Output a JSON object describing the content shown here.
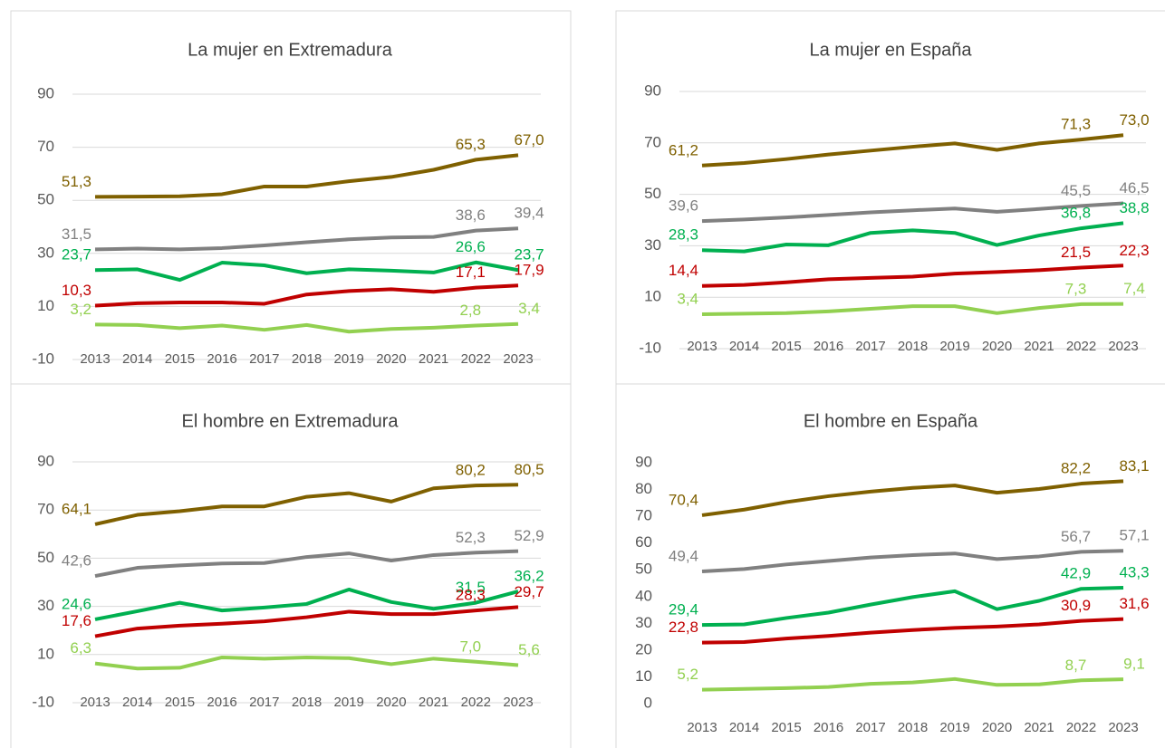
{
  "chart_data": [
    {
      "type": "line",
      "title": "La mujer en Extremadura",
      "categories": [
        "2013",
        "2014",
        "2015",
        "2016",
        "2017",
        "2018",
        "2019",
        "2020",
        "2021",
        "2022",
        "2023"
      ],
      "ylim": [
        -10,
        90
      ],
      "yticks": [
        -10,
        10,
        30,
        50,
        70,
        90
      ],
      "grid": true,
      "series": [
        {
          "color": "#7f6000",
          "values": [
            51.3,
            51.4,
            51.5,
            52.3,
            55.2,
            55.2,
            57.2,
            58.8,
            61.5,
            65.3,
            67.0
          ],
          "value_labels": [
            "51,3",
            null,
            null,
            null,
            null,
            null,
            null,
            null,
            null,
            "65,3",
            "67,0"
          ]
        },
        {
          "color": "#808080",
          "values": [
            31.5,
            31.8,
            31.5,
            32.0,
            33.0,
            34.2,
            35.3,
            36.0,
            36.2,
            38.6,
            39.4
          ],
          "value_labels": [
            "31,5",
            null,
            null,
            null,
            null,
            null,
            null,
            null,
            null,
            "38,6",
            "39,4"
          ]
        },
        {
          "color": "#00b050",
          "values": [
            23.7,
            24.0,
            20.0,
            26.5,
            25.5,
            22.5,
            24.0,
            23.5,
            22.8,
            26.6,
            23.7
          ],
          "value_labels": [
            "23,7",
            null,
            null,
            null,
            null,
            null,
            null,
            null,
            null,
            "26,6",
            "23,7"
          ]
        },
        {
          "color": "#c00000",
          "values": [
            10.3,
            11.2,
            11.5,
            11.5,
            11.0,
            14.5,
            15.8,
            16.5,
            15.5,
            17.1,
            17.9
          ],
          "value_labels": [
            "10,3",
            null,
            null,
            null,
            null,
            null,
            null,
            null,
            null,
            "17,1",
            "17,9"
          ]
        },
        {
          "color": "#92d050",
          "values": [
            3.2,
            3.0,
            1.8,
            2.8,
            1.2,
            3.0,
            0.5,
            1.5,
            2.0,
            2.8,
            3.4
          ],
          "value_labels": [
            "3,2",
            null,
            null,
            null,
            null,
            null,
            null,
            null,
            null,
            "2,8",
            "3,4"
          ]
        }
      ]
    },
    {
      "type": "line",
      "title": "La mujer en España",
      "categories": [
        "2013",
        "2014",
        "2015",
        "2016",
        "2017",
        "2018",
        "2019",
        "2020",
        "2021",
        "2022",
        "2023"
      ],
      "ylim": [
        -10,
        90
      ],
      "yticks": [
        -10,
        10,
        30,
        50,
        70,
        90
      ],
      "grid": true,
      "series": [
        {
          "color": "#7f6000",
          "values": [
            61.2,
            62.2,
            63.7,
            65.5,
            67.0,
            68.5,
            69.8,
            67.3,
            69.8,
            71.3,
            73.0
          ],
          "value_labels": [
            "61,2",
            null,
            null,
            null,
            null,
            null,
            null,
            null,
            null,
            "71,3",
            "73,0"
          ]
        },
        {
          "color": "#808080",
          "values": [
            39.6,
            40.2,
            41.0,
            42.0,
            43.0,
            43.8,
            44.5,
            43.2,
            44.3,
            45.5,
            46.5
          ],
          "value_labels": [
            "39,6",
            null,
            null,
            null,
            null,
            null,
            null,
            null,
            null,
            "45,5",
            "46,5"
          ]
        },
        {
          "color": "#00b050",
          "values": [
            28.3,
            27.8,
            30.5,
            30.2,
            35.0,
            36.0,
            35.0,
            30.3,
            34.0,
            36.8,
            38.8
          ],
          "value_labels": [
            "28,3",
            null,
            null,
            null,
            null,
            null,
            null,
            null,
            null,
            "36,8",
            "38,8"
          ]
        },
        {
          "color": "#c00000",
          "values": [
            14.4,
            14.8,
            15.8,
            17.0,
            17.5,
            18.0,
            19.2,
            19.8,
            20.5,
            21.5,
            22.3
          ],
          "value_labels": [
            "14,4",
            null,
            null,
            null,
            null,
            null,
            null,
            null,
            null,
            "21,5",
            "22,3"
          ]
        },
        {
          "color": "#92d050",
          "values": [
            3.4,
            3.6,
            3.8,
            4.5,
            5.5,
            6.5,
            6.5,
            3.8,
            5.8,
            7.3,
            7.4
          ],
          "value_labels": [
            "3,4",
            null,
            null,
            null,
            null,
            null,
            null,
            null,
            null,
            "7,3",
            "7,4"
          ]
        }
      ]
    },
    {
      "type": "line",
      "title": "El hombre en Extremadura",
      "categories": [
        "2013",
        "2014",
        "2015",
        "2016",
        "2017",
        "2018",
        "2019",
        "2020",
        "2021",
        "2022",
        "2023"
      ],
      "ylim": [
        -10,
        90
      ],
      "yticks": [
        -10,
        10,
        30,
        50,
        70,
        90
      ],
      "grid": true,
      "series": [
        {
          "color": "#7f6000",
          "values": [
            64.1,
            68.0,
            69.5,
            71.5,
            71.5,
            75.5,
            77.0,
            73.5,
            79.0,
            80.2,
            80.5
          ],
          "value_labels": [
            "64,1",
            null,
            null,
            null,
            null,
            null,
            null,
            null,
            null,
            "80,2",
            "80,5"
          ]
        },
        {
          "color": "#808080",
          "values": [
            42.6,
            46.0,
            47.0,
            47.8,
            48.0,
            50.5,
            52.0,
            49.0,
            51.3,
            52.3,
            52.9
          ],
          "value_labels": [
            "42,6",
            null,
            null,
            null,
            null,
            null,
            null,
            null,
            null,
            "52,3",
            "52,9"
          ]
        },
        {
          "color": "#00b050",
          "values": [
            24.6,
            28.0,
            31.5,
            28.3,
            29.5,
            31.0,
            37.0,
            31.8,
            29.0,
            31.5,
            36.2
          ],
          "value_labels": [
            "24,6",
            null,
            null,
            null,
            null,
            null,
            null,
            null,
            null,
            "31,5",
            "36,2"
          ]
        },
        {
          "color": "#c00000",
          "values": [
            17.6,
            20.8,
            22.0,
            22.8,
            23.8,
            25.5,
            27.8,
            26.8,
            26.8,
            28.3,
            29.7
          ],
          "value_labels": [
            "17,6",
            null,
            null,
            null,
            null,
            null,
            null,
            null,
            null,
            "28,3",
            "29,7"
          ]
        },
        {
          "color": "#92d050",
          "values": [
            6.3,
            4.2,
            4.5,
            8.8,
            8.3,
            8.8,
            8.5,
            6.0,
            8.3,
            7.0,
            5.6
          ],
          "value_labels": [
            "6,3",
            null,
            null,
            null,
            null,
            null,
            null,
            null,
            null,
            "7,0",
            "5,6"
          ]
        }
      ]
    },
    {
      "type": "line",
      "title": "El hombre en España",
      "categories": [
        "2013",
        "2014",
        "2015",
        "2016",
        "2017",
        "2018",
        "2019",
        "2020",
        "2021",
        "2022",
        "2023"
      ],
      "ylim": [
        0,
        90
      ],
      "yticks": [
        0,
        10,
        20,
        30,
        40,
        50,
        60,
        70,
        80,
        90
      ],
      "grid": false,
      "series": [
        {
          "color": "#7f6000",
          "values": [
            70.4,
            72.5,
            75.3,
            77.5,
            79.2,
            80.6,
            81.5,
            78.8,
            80.2,
            82.2,
            83.1
          ],
          "value_labels": [
            "70,4",
            null,
            null,
            null,
            null,
            null,
            null,
            null,
            null,
            "82,2",
            "83,1"
          ]
        },
        {
          "color": "#808080",
          "values": [
            49.4,
            50.3,
            52.0,
            53.3,
            54.6,
            55.5,
            56.1,
            54.0,
            55.0,
            56.7,
            57.1
          ],
          "value_labels": [
            "49,4",
            null,
            null,
            null,
            null,
            null,
            null,
            null,
            null,
            "56,7",
            "57,1"
          ]
        },
        {
          "color": "#00b050",
          "values": [
            29.4,
            29.6,
            32.0,
            34.0,
            37.0,
            39.8,
            42.0,
            35.3,
            38.4,
            42.9,
            43.3
          ],
          "value_labels": [
            "29,4",
            null,
            null,
            null,
            null,
            null,
            null,
            null,
            null,
            "42,9",
            "43,3"
          ]
        },
        {
          "color": "#c00000",
          "values": [
            22.8,
            23.0,
            24.3,
            25.3,
            26.5,
            27.5,
            28.3,
            28.8,
            29.6,
            30.9,
            31.6
          ],
          "value_labels": [
            "22,8",
            null,
            null,
            null,
            null,
            null,
            null,
            null,
            null,
            "30,9",
            "31,6"
          ]
        },
        {
          "color": "#92d050",
          "values": [
            5.2,
            5.5,
            5.8,
            6.2,
            7.4,
            7.9,
            9.2,
            7.0,
            7.2,
            8.7,
            9.1
          ],
          "value_labels": [
            "5,2",
            null,
            null,
            null,
            null,
            null,
            null,
            null,
            null,
            "8,7",
            "9,1"
          ]
        }
      ]
    }
  ]
}
